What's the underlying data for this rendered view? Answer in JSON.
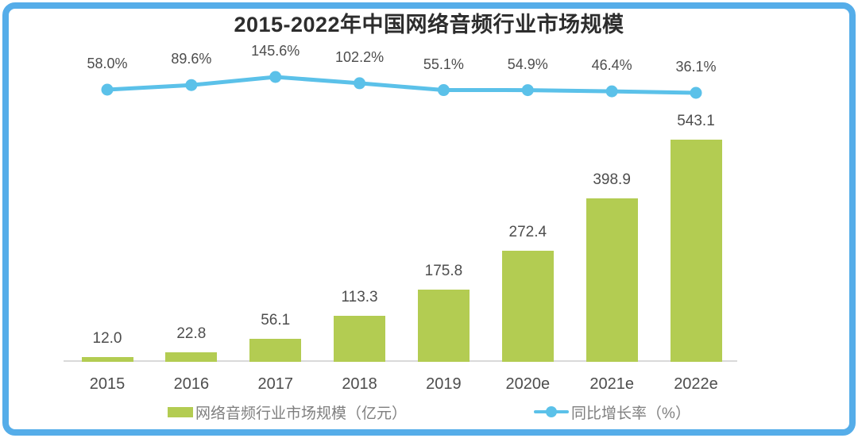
{
  "title": "2015-2022年中国网络音频行业市场规模",
  "colors": {
    "frame_border": "#55ADE9",
    "bar": "#B3CC52",
    "line": "#5BC1E9",
    "axis": "#D9D9D9",
    "title_text": "#2D2D2D",
    "data_label_text": "#4D4D4D",
    "legend_text": "#7F7F7F"
  },
  "chart_data": {
    "type": "bar",
    "subtype": "combo-bar-line",
    "title": "2015-2022年中国网络音频行业市场规模",
    "categories": [
      "2015",
      "2016",
      "2017",
      "2018",
      "2019",
      "2020e",
      "2021e",
      "2022e"
    ],
    "series": [
      {
        "name": "网络音频行业市场规模（亿元）",
        "type": "bar",
        "color": "#B3CC52",
        "values": [
          12.0,
          22.8,
          56.1,
          113.3,
          175.8,
          272.4,
          398.9,
          543.1
        ],
        "data_labels": [
          "12.0",
          "22.8",
          "56.1",
          "113.3",
          "175.8",
          "272.4",
          "398.9",
          "543.1"
        ]
      },
      {
        "name": "同比增长率（%）",
        "type": "line",
        "color": "#5BC1E9",
        "values": [
          58.0,
          89.6,
          145.6,
          102.2,
          55.1,
          54.9,
          46.4,
          36.1
        ],
        "data_labels": [
          "58.0%",
          "89.6%",
          "145.6%",
          "102.2%",
          "55.1%",
          "54.9%",
          "46.4%",
          "36.1%"
        ]
      }
    ],
    "xlabel": "",
    "ylabel": "",
    "grid": false,
    "value_axis_visible": false,
    "legend_position": "bottom"
  }
}
